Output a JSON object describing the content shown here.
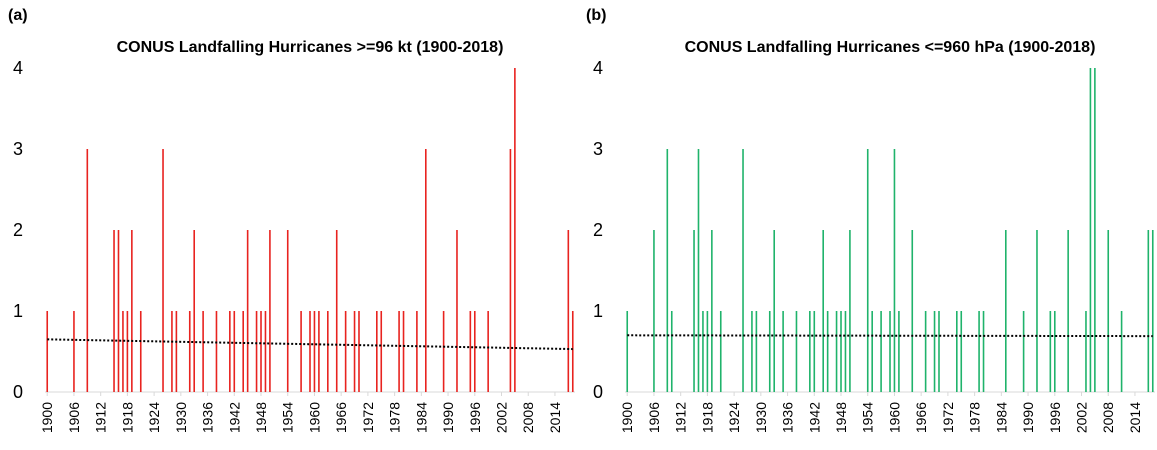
{
  "chart_data": [
    {
      "type": "bar",
      "panel_label": "(a)",
      "title": "CONUS Landfalling Hurricanes >=96 kt (1900-2018)",
      "color": "#e8231f",
      "x": [
        1900,
        1906,
        1909,
        1915,
        1916,
        1917,
        1918,
        1919,
        1921,
        1926,
        1928,
        1929,
        1932,
        1933,
        1935,
        1938,
        1941,
        1942,
        1944,
        1945,
        1947,
        1948,
        1949,
        1950,
        1954,
        1957,
        1959,
        1960,
        1961,
        1963,
        1965,
        1967,
        1969,
        1970,
        1974,
        1975,
        1979,
        1980,
        1983,
        1985,
        1989,
        1992,
        1995,
        1996,
        1999,
        2004,
        2005,
        2017,
        2018
      ],
      "values": [
        1,
        1,
        3,
        2,
        2,
        1,
        1,
        2,
        1,
        3,
        1,
        1,
        1,
        2,
        1,
        1,
        1,
        1,
        1,
        2,
        1,
        1,
        1,
        2,
        2,
        1,
        1,
        1,
        1,
        1,
        2,
        1,
        1,
        1,
        1,
        1,
        1,
        1,
        1,
        3,
        1,
        2,
        1,
        1,
        1,
        3,
        4,
        2,
        1
      ],
      "trend": {
        "x": [
          1900,
          2018
        ],
        "y": [
          0.65,
          0.53
        ]
      },
      "xlim": [
        1899.5,
        2018.5
      ],
      "ylim": [
        0,
        4
      ],
      "xticks": [
        1900,
        1906,
        1912,
        1918,
        1924,
        1930,
        1936,
        1942,
        1948,
        1954,
        1960,
        1966,
        1972,
        1978,
        1984,
        1990,
        1996,
        2002,
        2008,
        2014
      ],
      "yticks": [
        0,
        1,
        2,
        3,
        4
      ]
    },
    {
      "type": "bar",
      "panel_label": "(b)",
      "title": "CONUS Landfalling Hurricanes <=960 hPa (1900-2018)",
      "color": "#1fb36b",
      "x": [
        1900,
        1906,
        1909,
        1910,
        1915,
        1916,
        1917,
        1918,
        1919,
        1921,
        1926,
        1928,
        1929,
        1932,
        1933,
        1935,
        1938,
        1941,
        1942,
        1944,
        1945,
        1947,
        1948,
        1949,
        1950,
        1954,
        1955,
        1957,
        1959,
        1960,
        1961,
        1964,
        1967,
        1969,
        1970,
        1974,
        1975,
        1979,
        1980,
        1985,
        1989,
        1992,
        1995,
        1996,
        1999,
        2003,
        2004,
        2005,
        2008,
        2011,
        2017,
        2018
      ],
      "values": [
        1,
        2,
        3,
        1,
        2,
        3,
        1,
        1,
        2,
        1,
        3,
        1,
        1,
        1,
        2,
        1,
        1,
        1,
        1,
        2,
        1,
        1,
        1,
        1,
        2,
        3,
        1,
        1,
        1,
        3,
        1,
        2,
        1,
        1,
        1,
        1,
        1,
        1,
        1,
        2,
        1,
        2,
        1,
        1,
        2,
        1,
        4,
        4,
        2,
        1,
        2,
        2
      ],
      "trend": {
        "x": [
          1900,
          2018
        ],
        "y": [
          0.7,
          0.69
        ]
      },
      "xlim": [
        1899.5,
        2018.5
      ],
      "ylim": [
        0,
        4
      ],
      "xticks": [
        1900,
        1906,
        1912,
        1918,
        1924,
        1930,
        1936,
        1942,
        1948,
        1954,
        1960,
        1966,
        1972,
        1978,
        1984,
        1990,
        1996,
        2002,
        2008,
        2014
      ],
      "yticks": [
        0,
        1,
        2,
        3,
        4
      ]
    }
  ]
}
